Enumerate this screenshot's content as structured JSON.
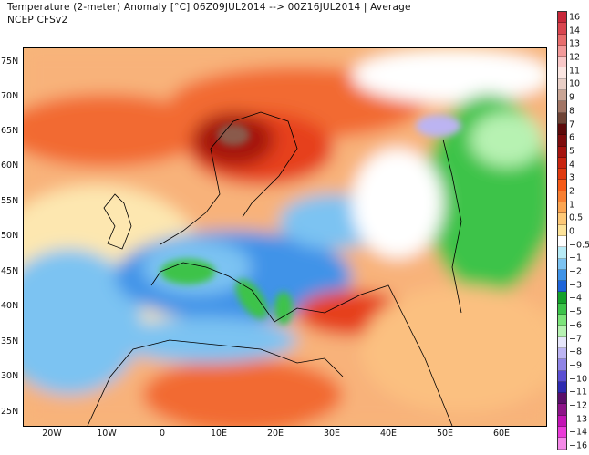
{
  "header": {
    "title": "Temperature (2-meter) Anomaly  [°C] 06Z09JUL2014 --> 00Z16JUL2014 | Average",
    "source": "NCEP  CFSv2"
  },
  "map": {
    "lat_labels": [
      "75N",
      "70N",
      "65N",
      "60N",
      "55N",
      "50N",
      "45N",
      "40N",
      "35N",
      "30N",
      "25N"
    ],
    "lon_labels": [
      "20W",
      "10W",
      "0",
      "10E",
      "20E",
      "30E",
      "40E",
      "50E",
      "60E"
    ]
  },
  "colorbar": {
    "labels": [
      "16",
      "14",
      "13",
      "12",
      "11",
      "10",
      "9",
      "8",
      "7",
      "6",
      "5",
      "4",
      "3",
      "2",
      "1",
      "0.5",
      "0",
      "−0.5",
      "−1",
      "−2",
      "−3",
      "−4",
      "−5",
      "−6",
      "−7",
      "−8",
      "−9",
      "−10",
      "−11",
      "−12",
      "−13",
      "−14",
      "−16"
    ],
    "colors": [
      "#c8283a",
      "#d9454f",
      "#e86d6d",
      "#f39a9a",
      "#f9c8c8",
      "#fbe6e2",
      "#e9cfc7",
      "#c9a595",
      "#a17565",
      "#6e4335",
      "#5c0a0a",
      "#7d0d0d",
      "#a5140f",
      "#c82410",
      "#e03a10",
      "#f55a18",
      "#f87f32",
      "#fba552",
      "#fdc877",
      "#fde39a",
      "#ffffff",
      "#b7ebf6",
      "#7cc3f2",
      "#3f93e8",
      "#1e64d8",
      "#14a02a",
      "#3cc34a",
      "#7ce47a",
      "#b7f2b2",
      "#e6e6fa",
      "#bcb4f2",
      "#8f84e6",
      "#5b4fd2",
      "#2e2ab0",
      "#5a0f6a",
      "#8c1488",
      "#c214b4",
      "#ea3cd8",
      "#f58ae8"
    ]
  }
}
